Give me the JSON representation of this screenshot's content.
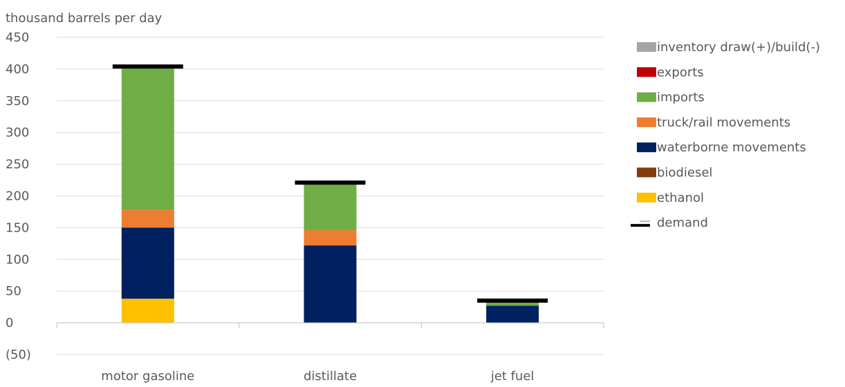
{
  "chart_data": {
    "type": "bar",
    "stacked": true,
    "ylabel": "thousand barrels per day",
    "ylim": [
      -50,
      450
    ],
    "yticks": [
      -50,
      0,
      50,
      100,
      150,
      200,
      250,
      300,
      350,
      400,
      450
    ],
    "ytick_labels": [
      "(50)",
      "0",
      "50",
      "100",
      "150",
      "200",
      "250",
      "300",
      "350",
      "400",
      "450"
    ],
    "grid": true,
    "legend_position": "right",
    "categories": [
      "motor gasoline",
      "distillate",
      "jet fuel"
    ],
    "series": [
      {
        "name": "ethanol",
        "color": "#FFC000",
        "values": [
          38,
          0,
          0
        ]
      },
      {
        "name": "biodiesel",
        "color": "#843C0C",
        "values": [
          0,
          0,
          0
        ]
      },
      {
        "name": "waterborne movements",
        "color": "#002060",
        "values": [
          112,
          122,
          27
        ]
      },
      {
        "name": "truck/rail movements",
        "color": "#ED7D31",
        "values": [
          28,
          24,
          0
        ]
      },
      {
        "name": "imports",
        "color": "#70AD47",
        "values": [
          224,
          72,
          5
        ]
      },
      {
        "name": "exports",
        "color": "#C00000",
        "values": [
          0,
          0,
          0
        ]
      },
      {
        "name": "inventory draw(+)/build(-)",
        "color": "#A5A5A5",
        "values": [
          0,
          0,
          0
        ]
      }
    ],
    "demand": {
      "name": "demand",
      "color": "#000000",
      "values": [
        404,
        221,
        35
      ]
    },
    "legend_order": [
      "inventory draw(+)/build(-)",
      "exports",
      "imports",
      "truck/rail movements",
      "waterborne movements",
      "biodiesel",
      "ethanol",
      "demand"
    ]
  }
}
